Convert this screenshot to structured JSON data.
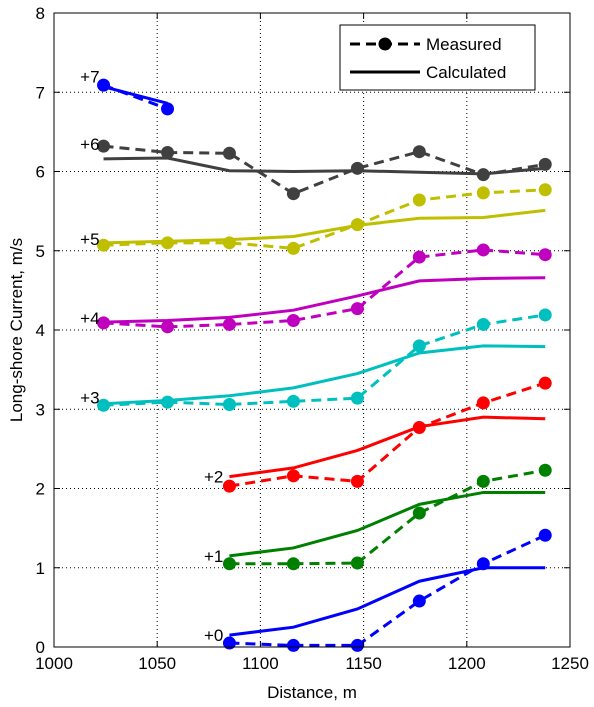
{
  "chart_data": {
    "type": "line",
    "xlabel": "Distance, m",
    "ylabel": "Long-shore Current, m/s",
    "xlim": [
      1000,
      1250
    ],
    "ylim": [
      0,
      8
    ],
    "xticks": [
      1000,
      1050,
      1100,
      1150,
      1200,
      1250
    ],
    "yticks": [
      0,
      1,
      2,
      3,
      4,
      5,
      6,
      7,
      8
    ],
    "grid": true,
    "legend": {
      "position": "top-right",
      "entries": [
        {
          "label": "Measured",
          "style": "dashed-marker"
        },
        {
          "label": "Calculated",
          "style": "solid"
        }
      ]
    },
    "series": [
      {
        "offset_label": "+0",
        "color": "#0000ff",
        "label_at": [
          1084,
          0.15
        ],
        "measured": {
          "x": [
            1085,
            1116,
            1147,
            1177,
            1208,
            1238
          ],
          "y": [
            0.05,
            0.02,
            0.02,
            0.58,
            1.05,
            1.41
          ]
        },
        "calculated": {
          "x": [
            1085,
            1116,
            1147,
            1177,
            1208,
            1238
          ],
          "y": [
            0.15,
            0.25,
            0.48,
            0.83,
            1.0,
            1.0
          ]
        }
      },
      {
        "offset_label": "+1",
        "color": "#008000",
        "label_at": [
          1084,
          1.15
        ],
        "measured": {
          "x": [
            1085,
            1116,
            1147,
            1177,
            1208,
            1238
          ],
          "y": [
            1.05,
            1.05,
            1.06,
            1.69,
            2.09,
            2.23
          ]
        },
        "calculated": {
          "x": [
            1085,
            1116,
            1147,
            1177,
            1208,
            1238
          ],
          "y": [
            1.15,
            1.25,
            1.47,
            1.8,
            1.95,
            1.95
          ]
        }
      },
      {
        "offset_label": "+2",
        "color": "#ff0000",
        "label_at": [
          1084,
          2.15
        ],
        "measured": {
          "x": [
            1085,
            1116,
            1147,
            1177,
            1208,
            1238
          ],
          "y": [
            2.03,
            2.16,
            2.09,
            2.77,
            3.08,
            3.33
          ]
        },
        "calculated": {
          "x": [
            1085,
            1116,
            1147,
            1177,
            1208,
            1238
          ],
          "y": [
            2.15,
            2.26,
            2.48,
            2.78,
            2.9,
            2.88
          ]
        }
      },
      {
        "offset_label": "+3",
        "color": "#00bfbf",
        "label_at": [
          1024,
          3.15
        ],
        "measured": {
          "x": [
            1024,
            1055,
            1085,
            1116,
            1147,
            1177,
            1208,
            1238
          ],
          "y": [
            3.05,
            3.09,
            3.06,
            3.1,
            3.14,
            3.8,
            4.07,
            4.19
          ]
        },
        "calculated": {
          "x": [
            1024,
            1055,
            1085,
            1116,
            1147,
            1177,
            1208,
            1238
          ],
          "y": [
            3.07,
            3.11,
            3.17,
            3.27,
            3.45,
            3.71,
            3.8,
            3.79
          ]
        }
      },
      {
        "offset_label": "+4",
        "color": "#bf00bf",
        "label_at": [
          1024,
          4.15
        ],
        "measured": {
          "x": [
            1024,
            1055,
            1085,
            1116,
            1147,
            1177,
            1208,
            1238
          ],
          "y": [
            4.09,
            4.04,
            4.07,
            4.12,
            4.27,
            4.92,
            5.01,
            4.95
          ]
        },
        "calculated": {
          "x": [
            1024,
            1055,
            1085,
            1116,
            1147,
            1177,
            1208,
            1238
          ],
          "y": [
            4.1,
            4.12,
            4.16,
            4.25,
            4.43,
            4.62,
            4.65,
            4.66
          ]
        }
      },
      {
        "offset_label": "+5",
        "color": "#bfbf00",
        "label_at": [
          1024,
          5.15
        ],
        "measured": {
          "x": [
            1024,
            1055,
            1085,
            1116,
            1147,
            1177,
            1208,
            1238
          ],
          "y": [
            5.07,
            5.1,
            5.1,
            5.03,
            5.33,
            5.64,
            5.73,
            5.77
          ]
        },
        "calculated": {
          "x": [
            1024,
            1055,
            1085,
            1116,
            1147,
            1177,
            1208,
            1238
          ],
          "y": [
            5.1,
            5.12,
            5.14,
            5.18,
            5.32,
            5.41,
            5.42,
            5.51
          ]
        }
      },
      {
        "offset_label": "+6",
        "color": "#404040",
        "label_at": [
          1024,
          6.35
        ],
        "measured": {
          "x": [
            1024,
            1055,
            1085,
            1116,
            1147,
            1177,
            1208,
            1238
          ],
          "y": [
            6.32,
            6.24,
            6.23,
            5.72,
            6.04,
            6.25,
            5.96,
            6.09
          ]
        },
        "calculated": {
          "x": [
            1024,
            1055,
            1085,
            1116,
            1147,
            1177,
            1208,
            1238
          ],
          "y": [
            6.16,
            6.17,
            6.01,
            6.0,
            6.01,
            5.99,
            5.97,
            6.04
          ]
        }
      },
      {
        "offset_label": "+7",
        "color": "#0000ff",
        "label_at": [
          1024,
          7.2
        ],
        "measured": {
          "x": [
            1024,
            1055
          ],
          "y": [
            7.09,
            6.79
          ]
        },
        "calculated": {
          "x": [
            1024,
            1055
          ],
          "y": [
            7.07,
            6.86
          ]
        }
      }
    ]
  }
}
